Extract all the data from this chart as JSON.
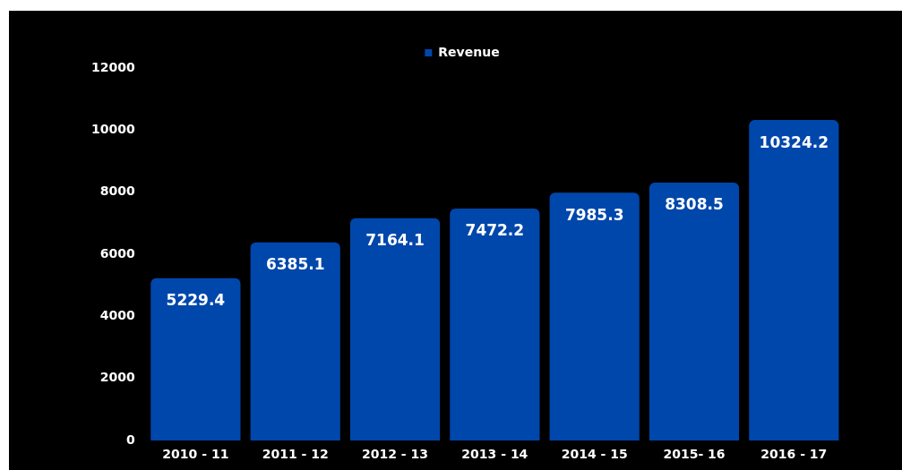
{
  "chart_data": {
    "type": "bar",
    "categories": [
      "2010 - 11",
      "2011 - 12",
      "2012 - 13",
      "2013 - 14",
      "2014 - 15",
      "2015- 16",
      "2016 - 17"
    ],
    "series": [
      {
        "name": "Revenue",
        "color": "#0047ab",
        "values": [
          5229.4,
          6385.1,
          7164.1,
          7472.2,
          7985.3,
          8308.5,
          10324.2
        ]
      }
    ],
    "ylim": [
      0,
      12000
    ],
    "yticks": [
      0,
      2000,
      4000,
      6000,
      8000,
      10000,
      12000
    ],
    "grid": false,
    "legend": "top",
    "data_labels": true
  }
}
